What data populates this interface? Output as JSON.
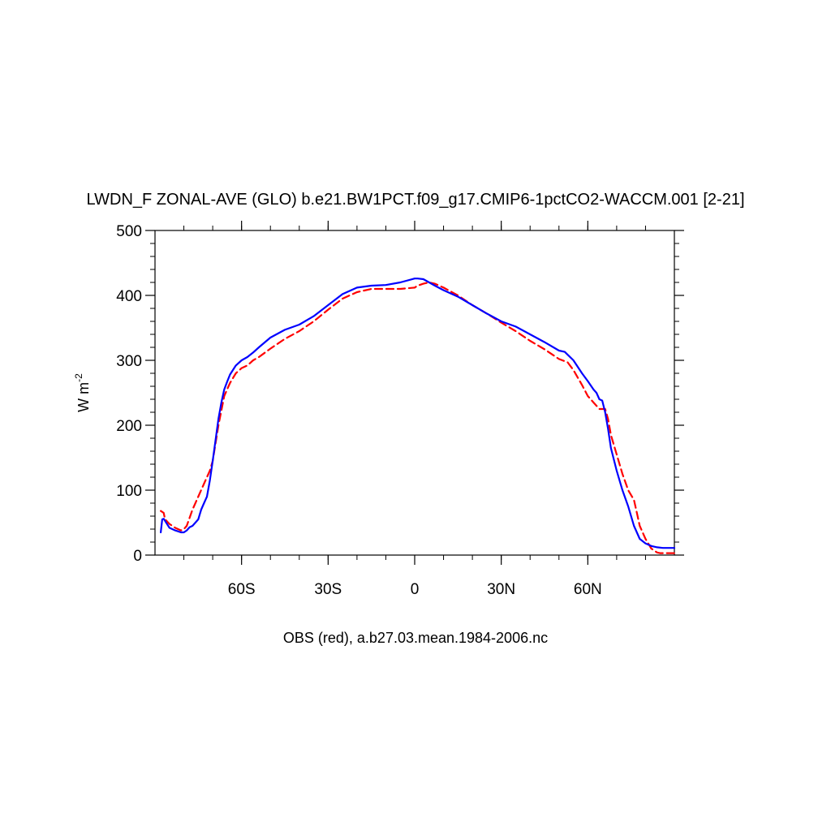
{
  "chart_data": {
    "type": "line",
    "title": "LWDN_F ZONAL-AVE (GLO) b.e21.BW1PCT.f09_g17.CMIP6-1pctCO2-WACCM.001 [2-21]",
    "xlabel": "OBS (red), a.b27.03.mean.1984-2006.nc",
    "ylabel": "W m",
    "ylabel_superscript": "-2",
    "xlim": [
      -90,
      90
    ],
    "ylim": [
      0,
      500
    ],
    "x_ticks": [
      {
        "value": -60,
        "label": "60S"
      },
      {
        "value": -30,
        "label": "30S"
      },
      {
        "value": 0,
        "label": "0"
      },
      {
        "value": 30,
        "label": "30N"
      },
      {
        "value": 60,
        "label": "60N"
      }
    ],
    "y_ticks": [
      {
        "value": 0,
        "label": "0"
      },
      {
        "value": 100,
        "label": "100"
      },
      {
        "value": 200,
        "label": "200"
      },
      {
        "value": 300,
        "label": "300"
      },
      {
        "value": 400,
        "label": "400"
      },
      {
        "value": 500,
        "label": "500"
      }
    ],
    "grid": false,
    "series": [
      {
        "color": "#0000ff",
        "dash": "solid",
        "x": [
          -88,
          -87.5,
          -87,
          -85,
          -83,
          -81,
          -80,
          -79,
          -78,
          -77,
          -75,
          -74,
          -73,
          -72,
          -71,
          -70,
          -68,
          -67,
          -66,
          -65,
          -64,
          -62,
          -60,
          -58,
          -56,
          -54,
          -50,
          -45,
          -40,
          -35,
          -30,
          -25,
          -20,
          -15,
          -10,
          -5,
          0,
          1,
          3,
          5,
          7,
          10,
          15,
          20,
          25,
          30,
          35,
          40,
          45,
          50,
          52,
          55,
          58,
          60,
          62,
          63,
          64,
          65,
          66,
          67,
          68,
          70,
          72,
          74,
          76,
          78,
          80,
          82,
          84,
          86,
          88,
          90
        ],
        "y": [
          35,
          55,
          56,
          42,
          38,
          35,
          35,
          38,
          43,
          45,
          55,
          70,
          80,
          90,
          115,
          145,
          210,
          235,
          255,
          267,
          278,
          292,
          300,
          305,
          312,
          320,
          335,
          347,
          355,
          368,
          385,
          402,
          412,
          415,
          416,
          420,
          426,
          426,
          425,
          420,
          415,
          408,
          398,
          385,
          372,
          360,
          352,
          340,
          328,
          315,
          313,
          300,
          280,
          268,
          255,
          250,
          240,
          238,
          220,
          195,
          165,
          130,
          100,
          75,
          45,
          25,
          18,
          14,
          12,
          11,
          11,
          11
        ]
      },
      {
        "color": "#ff0000",
        "dash": "dashed",
        "x": [
          -88,
          -87,
          -86.5,
          -85,
          -83,
          -81,
          -80,
          -79,
          -77,
          -75,
          -73,
          -71,
          -70,
          -68,
          -66,
          -64,
          -62,
          -60,
          -58,
          -56,
          -54,
          -50,
          -45,
          -40,
          -35,
          -30,
          -25,
          -20,
          -15,
          -10,
          -5,
          0,
          1,
          3,
          5,
          7,
          10,
          15,
          20,
          25,
          30,
          35,
          40,
          45,
          50,
          53,
          55,
          58,
          60,
          62,
          64,
          66,
          67,
          68,
          70,
          72,
          74,
          76,
          77,
          78,
          80,
          82,
          84,
          85,
          86,
          87,
          88,
          90
        ],
        "y": [
          68,
          65,
          55,
          48,
          42,
          38,
          40,
          45,
          70,
          90,
          110,
          130,
          145,
          200,
          245,
          265,
          280,
          288,
          292,
          300,
          305,
          318,
          333,
          345,
          360,
          378,
          395,
          405,
          410,
          410,
          410,
          412,
          415,
          418,
          420,
          418,
          412,
          400,
          385,
          372,
          358,
          345,
          330,
          317,
          302,
          297,
          285,
          262,
          245,
          235,
          225,
          225,
          210,
          185,
          155,
          125,
          100,
          85,
          65,
          45,
          25,
          10,
          4,
          3,
          3,
          3,
          3,
          3
        ]
      }
    ]
  }
}
